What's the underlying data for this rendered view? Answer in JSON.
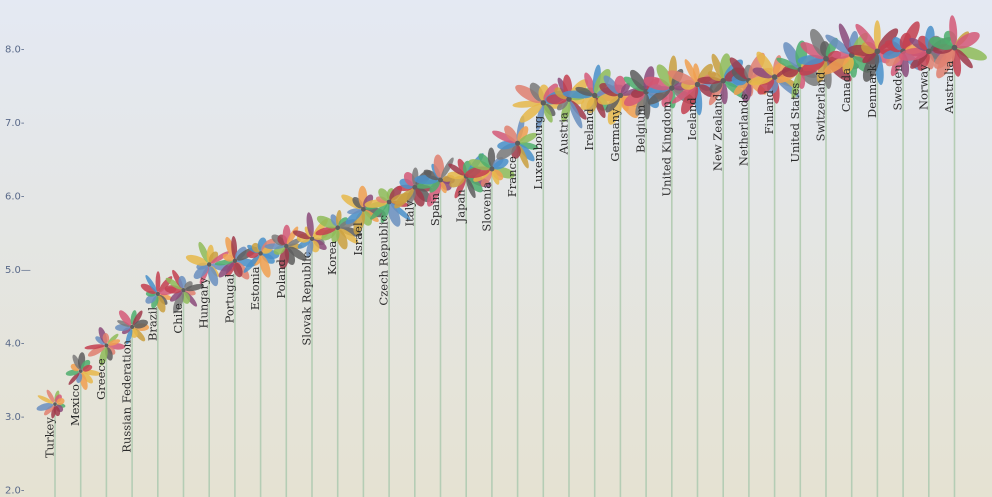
{
  "chart_data": {
    "type": "scatter",
    "ylim": [
      2.0,
      8.5
    ],
    "yticks": [
      "2.0-",
      "3.0-",
      "4.0-",
      "5.0—",
      "6.0-",
      "7.0-",
      "8.0-"
    ],
    "ytick_values": [
      2,
      3,
      4,
      5,
      6,
      7,
      8
    ],
    "grid": false,
    "background": {
      "top": "#e4e9f3",
      "bottom": "#e5e2d2"
    },
    "stem_color": "#b5cdb5",
    "petal_colors": [
      "#4a90c9",
      "#6a8fbf",
      "#e08070",
      "#f0a050",
      "#d45a78",
      "#e6b84a",
      "#4fae6e",
      "#8fbc5a",
      "#8a4a7a",
      "#a03a4a",
      "#c44050",
      "#5e5e5e",
      "#7a7a7a",
      "#c9a040"
    ],
    "categories": [
      "Turkey",
      "Mexico",
      "Greece",
      "Russian Federation",
      "Brazil",
      "Chile",
      "Hungary",
      "Portugal",
      "Estonia",
      "Poland",
      "Slovak Republic",
      "Korea",
      "Israel",
      "Czech Republic",
      "Italy",
      "Spain",
      "Japan",
      "Slovenia",
      "France",
      "Luxembourg",
      "Austria",
      "Ireland",
      "Germany",
      "Belgium",
      "United Kingdom",
      "Iceland",
      "New Zealand",
      "Netherlands",
      "Finland",
      "United States",
      "Switzerland",
      "Canada",
      "Denmark",
      "Sweden",
      "Norway",
      "Australia"
    ],
    "values": [
      3.25,
      3.7,
      4.05,
      4.3,
      4.75,
      4.8,
      5.15,
      5.2,
      5.3,
      5.4,
      5.5,
      5.65,
      5.9,
      6.0,
      6.2,
      6.3,
      6.35,
      6.45,
      6.8,
      7.35,
      7.4,
      7.45,
      7.45,
      7.5,
      7.55,
      7.6,
      7.65,
      7.65,
      7.7,
      7.8,
      7.95,
      8.0,
      8.05,
      8.05,
      8.05,
      8.1
    ]
  }
}
